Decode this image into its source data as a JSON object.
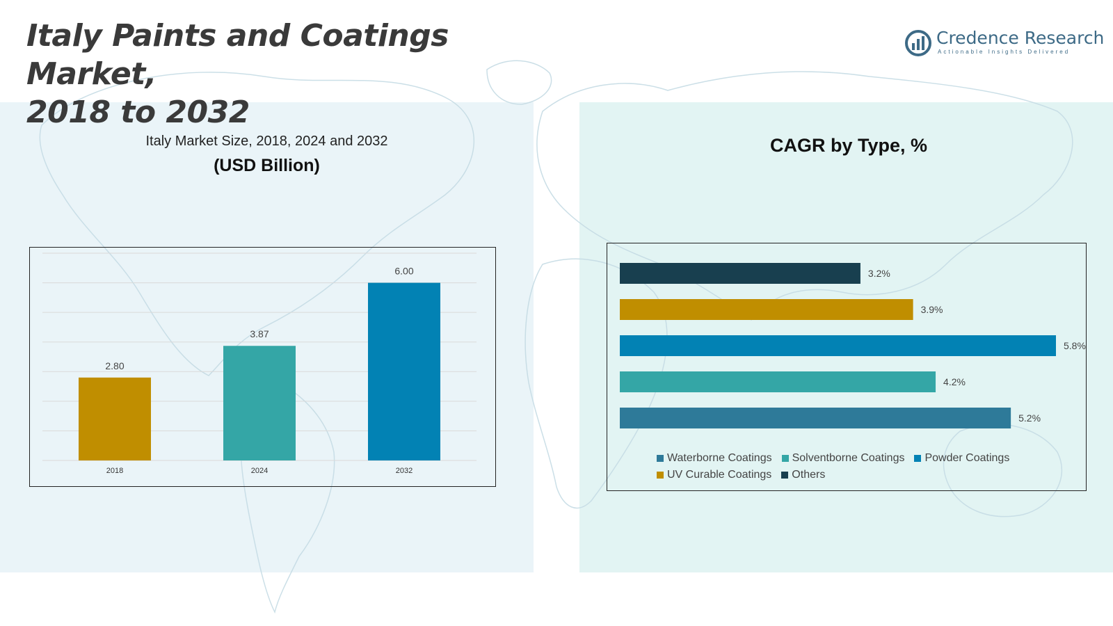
{
  "header": {
    "title_line1": "Italy Paints and Coatings Market,",
    "title_line2": "2018 to 2032"
  },
  "logo": {
    "name": "Credence Research",
    "tagline": "Actionable Insights Delivered"
  },
  "left_chart": {
    "subtitle": "Italy Market Size, 2018, 2024 and 2032",
    "unit": "(USD Billion)"
  },
  "right_chart": {
    "title": "CAGR by Type, %"
  },
  "chart_data": [
    {
      "type": "bar",
      "title": "Italy Market Size, 2018, 2024 and 2032",
      "ylabel": "(USD Billion)",
      "categories": [
        "2018",
        "2024",
        "2032"
      ],
      "values": [
        2.8,
        3.87,
        6.0
      ],
      "value_labels": [
        "2.80",
        "3.87",
        "6.00"
      ],
      "colors": [
        "#c08e00",
        "#34a6a6",
        "#0282b4"
      ],
      "ylim": [
        0,
        7
      ],
      "grid": true
    },
    {
      "type": "bar",
      "orientation": "horizontal",
      "title": "CAGR by Type, %",
      "categories": [
        "Others",
        "UV Curable Coatings",
        "Powder Coatings",
        "Solventborne Coatings",
        "Waterborne Coatings"
      ],
      "values": [
        3.2,
        3.9,
        5.8,
        4.2,
        5.2
      ],
      "value_labels": [
        "3.2%",
        "3.9%",
        "5.8%",
        "4.2%",
        "5.2%"
      ],
      "colors": [
        "#183f4f",
        "#c08e00",
        "#0282b4",
        "#34a6a6",
        "#2e7a99"
      ],
      "xlim": [
        0,
        5.8
      ],
      "legend": [
        {
          "label": "Waterborne Coatings",
          "color": "#2e7a99"
        },
        {
          "label": "Solventborne Coatings",
          "color": "#34a6a6"
        },
        {
          "label": "Powder Coatings",
          "color": "#0282b4"
        },
        {
          "label": "UV Curable Coatings",
          "color": "#c08e00"
        },
        {
          "label": "Others",
          "color": "#183f4f"
        }
      ],
      "legend_position": "bottom"
    }
  ]
}
